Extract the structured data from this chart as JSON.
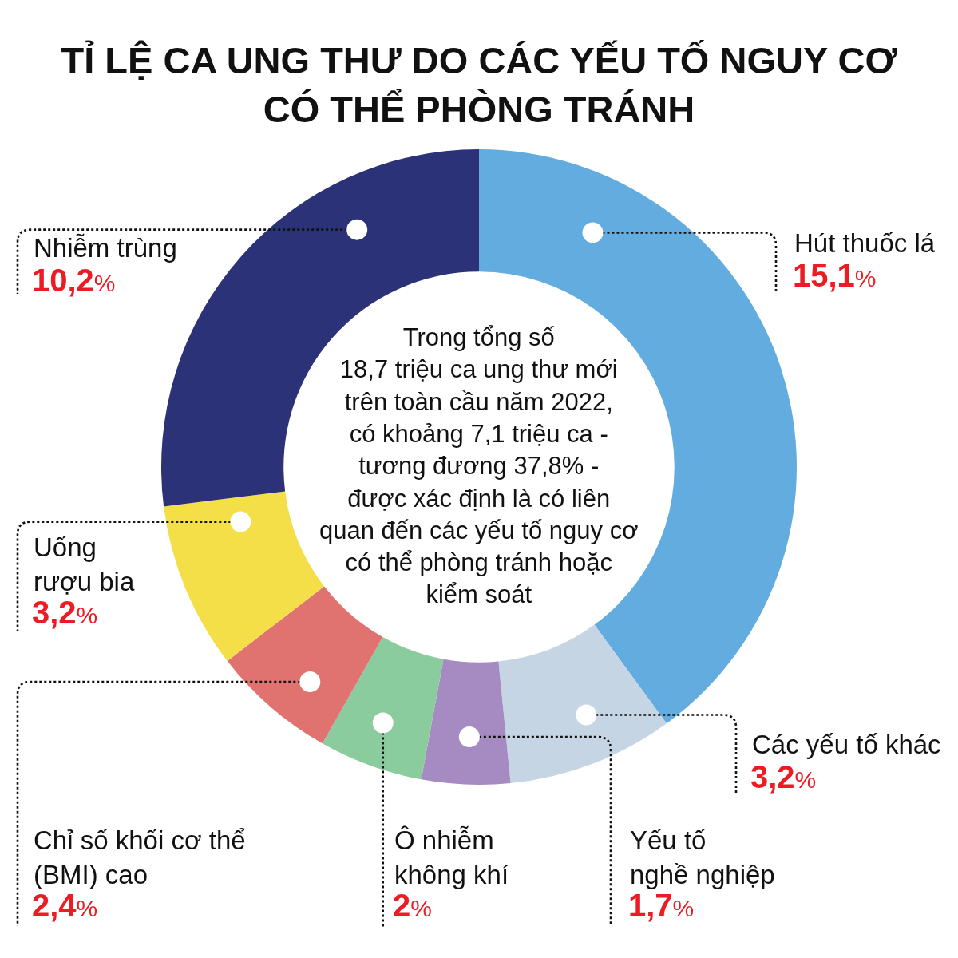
{
  "chart_data": {
    "type": "donut",
    "title": "TỈ LỆ CA UNG THƯ DO CÁC YẾU TỐ NGUY CƠ\nCÓ THỂ PHÒNG TRÁNH",
    "categories": [
      "Hút thuốc lá",
      "Các yếu tố khác",
      "Yếu tố\nnghề nghiệp",
      "Ô nhiễm\nkhông khí",
      "Chỉ số khối cơ thể\n(BMI) cao",
      "Uống\nrượu bia",
      "Nhiễm trùng"
    ],
    "values": [
      15.1,
      3.2,
      1.7,
      2,
      2.4,
      3.2,
      10.2
    ],
    "colors": [
      "#62acdf",
      "#c5d5e3",
      "#a58bc2",
      "#8bcc9f",
      "#e07370",
      "#f4df49",
      "#2b3278"
    ],
    "value_labels": [
      "15,1%",
      "3,2%",
      "1,7%",
      "2%",
      "2,4%",
      "3,2%",
      "10,2%"
    ],
    "annotations": [
      "Trong tổng số\n18,7 triệu ca ung thư mới\ntrên toàn cầu năm 2022,\ncó khoảng 7,1 triệu ca -\ntương đương 37,8% -\nđược xác định là có liên\nquan đến các yếu tố nguy cơ\ncó thể phòng tránh hoặc\nkiểm soát"
    ]
  }
}
